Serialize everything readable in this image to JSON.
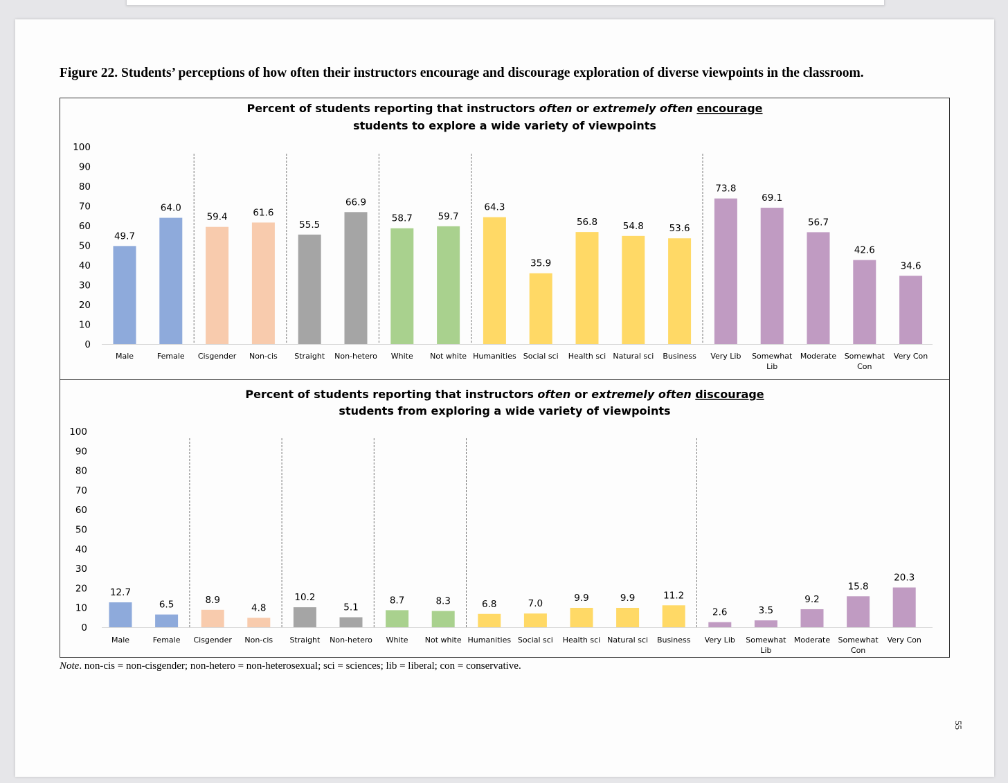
{
  "figure_title": "Figure 22. Students’ perceptions of how often their instructors encourage and discourage exploration of diverse viewpoints in the classroom.",
  "note": {
    "label": "Note",
    "text": ". non-cis = non-cisgender; non-hetero = non-heterosexual; sci = sciences; lib = liberal; con = conservative."
  },
  "page_number": "55",
  "colors": {
    "gender": "#8eaadb",
    "cisgender": "#f8cbad",
    "orientation": "#a5a5a5",
    "race": "#a9d18e",
    "major": "#ffd966",
    "politics": "#c09bc2"
  },
  "chart_data": [
    {
      "type": "bar",
      "title_lines": [
        [
          {
            "text": "Percent of students reporting that instructors ",
            "style": "bold"
          },
          {
            "text": "often",
            "style": "bold-italic"
          },
          {
            "text": " or ",
            "style": "bold"
          },
          {
            "text": "extremely often",
            "style": "bold-italic"
          },
          {
            "text": " ",
            "style": "bold"
          },
          {
            "text": "encourage",
            "style": "bold-underline"
          }
        ],
        [
          {
            "text": "students to explore a wide variety of viewpoints",
            "style": "bold"
          }
        ]
      ],
      "ylim": [
        0,
        100
      ],
      "yticks": [
        0,
        10,
        20,
        30,
        40,
        50,
        60,
        70,
        80,
        90,
        100
      ],
      "categories": [
        [
          "Male"
        ],
        [
          "Female"
        ],
        [
          "Cisgender"
        ],
        [
          "Non-cis"
        ],
        [
          "Straight"
        ],
        [
          "Non-hetero"
        ],
        [
          "White"
        ],
        [
          "Not white"
        ],
        [
          "Humanities"
        ],
        [
          "Social sci"
        ],
        [
          "Health sci"
        ],
        [
          "Natural sci"
        ],
        [
          "Business"
        ],
        [
          "Very Lib"
        ],
        [
          "Somewhat",
          "Lib"
        ],
        [
          "Moderate"
        ],
        [
          "Somewhat",
          "Con"
        ],
        [
          "Very Con"
        ]
      ],
      "values": [
        49.7,
        64.0,
        59.4,
        61.6,
        55.5,
        66.9,
        58.7,
        59.7,
        64.3,
        35.9,
        56.8,
        54.8,
        53.6,
        73.8,
        69.1,
        56.7,
        42.6,
        34.6
      ],
      "value_labels": [
        "49.7",
        "64.0",
        "59.4",
        "61.6",
        "55.5",
        "66.9",
        "58.7",
        "59.7",
        "64.3",
        "35.9",
        "56.8",
        "54.8",
        "53.6",
        "73.8",
        "69.1",
        "56.7",
        "42.6",
        "34.6"
      ],
      "groups": [
        "gender",
        "gender",
        "cisgender",
        "cisgender",
        "orientation",
        "orientation",
        "race",
        "race",
        "major",
        "major",
        "major",
        "major",
        "major",
        "politics",
        "politics",
        "politics",
        "politics",
        "politics"
      ],
      "grid": false
    },
    {
      "type": "bar",
      "title_lines": [
        [
          {
            "text": "Percent of students reporting that instructors ",
            "style": "bold"
          },
          {
            "text": "often",
            "style": "bold-italic"
          },
          {
            "text": " or ",
            "style": "bold"
          },
          {
            "text": "extremely often",
            "style": "bold-italic"
          },
          {
            "text": " ",
            "style": "bold"
          },
          {
            "text": "discourage",
            "style": "bold-underline"
          }
        ],
        [
          {
            "text": "students from exploring a wide variety of viewpoints",
            "style": "bold"
          }
        ]
      ],
      "ylim": [
        0,
        100
      ],
      "yticks": [
        0,
        10,
        20,
        30,
        40,
        50,
        60,
        70,
        80,
        90,
        100
      ],
      "categories": [
        [
          "Male"
        ],
        [
          "Female"
        ],
        [
          "Cisgender"
        ],
        [
          "Non-cis"
        ],
        [
          "Straight"
        ],
        [
          "Non-hetero"
        ],
        [
          "White"
        ],
        [
          "Not white"
        ],
        [
          "Humanities"
        ],
        [
          "Social sci"
        ],
        [
          "Health sci"
        ],
        [
          "Natural sci"
        ],
        [
          "Business"
        ],
        [
          "Very Lib"
        ],
        [
          "Somewhat",
          "Lib"
        ],
        [
          "Moderate"
        ],
        [
          "Somewhat",
          "Con"
        ],
        [
          "Very Con"
        ]
      ],
      "values": [
        12.7,
        6.5,
        8.9,
        4.8,
        10.2,
        5.1,
        8.7,
        8.3,
        6.8,
        7.0,
        9.9,
        9.9,
        11.2,
        2.6,
        3.5,
        9.2,
        15.8,
        20.3
      ],
      "value_labels": [
        "12.7",
        "6.5",
        "8.9",
        "4.8",
        "10.2",
        "5.1",
        "8.7",
        "8.3",
        "6.8",
        "7.0",
        "9.9",
        "9.9",
        "11.2",
        "2.6",
        "3.5",
        "9.2",
        "15.8",
        "20.3"
      ],
      "groups": [
        "gender",
        "gender",
        "cisgender",
        "cisgender",
        "orientation",
        "orientation",
        "race",
        "race",
        "major",
        "major",
        "major",
        "major",
        "major",
        "politics",
        "politics",
        "politics",
        "politics",
        "politics"
      ],
      "grid": false
    }
  ]
}
